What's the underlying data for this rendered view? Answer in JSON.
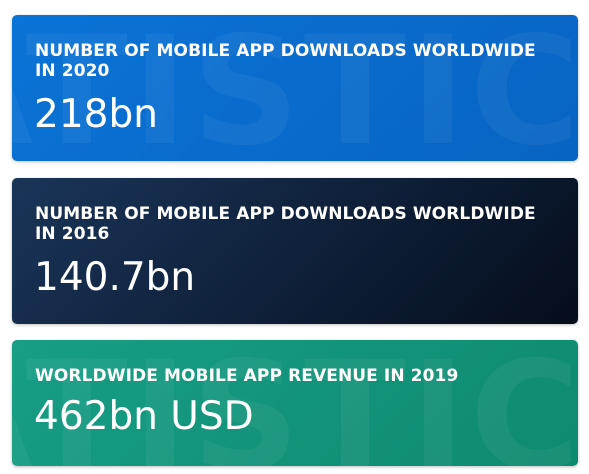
{
  "cards": [
    {
      "title": "NUMBER OF MOBILE APP DOWNLOADS WORLDWIDE IN 2020",
      "value": "218bn",
      "color_start": "#0a73d6",
      "color_end": "#0864c2"
    },
    {
      "title": "NUMBER OF MOBILE APP DOWNLOADS WORLDWIDE IN 2016",
      "value": "140.7bn",
      "color_start": "#1a3559",
      "color_end": "#050d1c"
    },
    {
      "title": "WORLDWIDE MOBILE APP REVENUE IN 2019",
      "value": "462bn USD",
      "color_start": "#179e85",
      "color_end": "#0e8a6f"
    }
  ],
  "watermark": "ATISTIC"
}
